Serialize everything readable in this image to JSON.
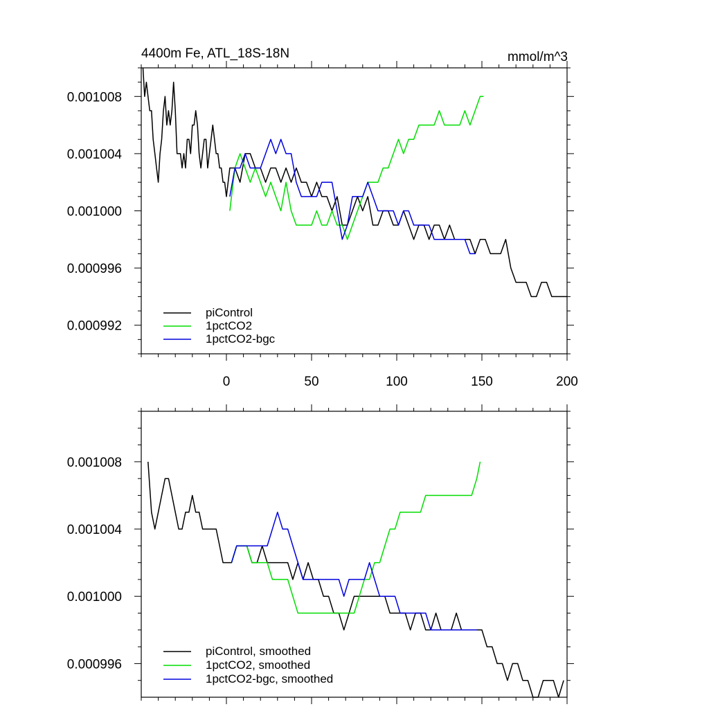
{
  "chart_data": [
    {
      "type": "line",
      "title": "4400m Fe, ATL_18S-18N",
      "units": "mmol/m^3",
      "xlim": [
        -50,
        200
      ],
      "ylim": [
        0.00099,
        0.00101
      ],
      "xticks": [
        0,
        50,
        100,
        150,
        200
      ],
      "xtick_labels": [
        "0",
        "50",
        "100",
        "150",
        "200"
      ],
      "yticks": [
        0.000992,
        0.000996,
        0.001,
        0.001004,
        0.001008
      ],
      "ytick_labels": [
        "0.000992",
        "0.000996",
        "0.001000",
        "0.001004",
        "0.001008"
      ],
      "legend_position": "bottom-left",
      "series": [
        {
          "name": "piControl",
          "color": "#000000",
          "x": [
            -49,
            -48,
            -47,
            -46,
            -45,
            -44,
            -43,
            -42,
            -41,
            -40,
            -39,
            -38,
            -37,
            -36,
            -35,
            -34,
            -33,
            -32,
            -31,
            -30,
            -29,
            -28,
            -27,
            -26,
            -25,
            -24,
            -23,
            -22,
            -21,
            -20,
            -19,
            -18,
            -17,
            -16,
            -15,
            -14,
            -13,
            -12,
            -11,
            -10,
            -9,
            -8,
            -7,
            -6,
            -5,
            -4,
            -3,
            -2,
            -1,
            0,
            2,
            5,
            8,
            11,
            14,
            17,
            20,
            23,
            26,
            29,
            32,
            35,
            38,
            41,
            44,
            47,
            50,
            53,
            56,
            59,
            62,
            65,
            68,
            71,
            74,
            77,
            80,
            83,
            86,
            89,
            92,
            95,
            98,
            101,
            104,
            107,
            110,
            113,
            116,
            119,
            122,
            125,
            128,
            131,
            134,
            137,
            140,
            143,
            146,
            149,
            152,
            155,
            158,
            161,
            164,
            167,
            170,
            173,
            176,
            179,
            182,
            185,
            188,
            191,
            194,
            197,
            200
          ],
          "values": [
            0.00101,
            0.001008,
            0.001009,
            0.001008,
            0.001007,
            0.001007,
            0.001005,
            0.001004,
            0.001003,
            0.001002,
            0.001004,
            0.001005,
            0.001007,
            0.001008,
            0.001006,
            0.001007,
            0.001006,
            0.001007,
            0.001009,
            0.001007,
            0.001004,
            0.001004,
            0.001004,
            0.001003,
            0.001004,
            0.001003,
            0.001005,
            0.001005,
            0.001004,
            0.001006,
            0.001006,
            0.001007,
            0.001006,
            0.001004,
            0.001003,
            0.001004,
            0.001005,
            0.001005,
            0.001003,
            0.001004,
            0.001005,
            0.001006,
            0.001005,
            0.001004,
            0.001004,
            0.001003,
            0.001003,
            0.001002,
            0.001002,
            0.001001,
            0.001003,
            0.001003,
            0.001002,
            0.001004,
            0.001004,
            0.001003,
            0.001003,
            0.001002,
            0.001003,
            0.001003,
            0.001002,
            0.001003,
            0.001002,
            0.001003,
            0.001002,
            0.001002,
            0.001001,
            0.001002,
            0.001001,
            0.001001,
            0.001,
            0.001001,
            0.000999,
            0.000999,
            0.001,
            0.001001,
            0.001,
            0.001001,
            0.000999,
            0.000999,
            0.001,
            0.001,
            0.000999,
            0.000999,
            0.001,
            0.000999,
            0.000998,
            0.000999,
            0.000999,
            0.000998,
            0.000999,
            0.000999,
            0.000998,
            0.000999,
            0.000998,
            0.000998,
            0.000998,
            0.000998,
            0.000997,
            0.000998,
            0.000998,
            0.000997,
            0.000997,
            0.000997,
            0.000998,
            0.000996,
            0.000995,
            0.000995,
            0.000995,
            0.000994,
            0.000994,
            0.000995,
            0.000995,
            0.000994,
            0.000994,
            0.000994,
            0.000994
          ]
        },
        {
          "name": "1pctCO2",
          "color": "#00dd00",
          "x": [
            2,
            5,
            8,
            11,
            14,
            17,
            20,
            23,
            26,
            29,
            32,
            35,
            38,
            41,
            44,
            47,
            50,
            53,
            56,
            59,
            62,
            65,
            68,
            71,
            74,
            77,
            80,
            83,
            86,
            89,
            92,
            95,
            98,
            101,
            104,
            107,
            110,
            113,
            116,
            119,
            122,
            125,
            128,
            131,
            134,
            137,
            140,
            143,
            146,
            149,
            151
          ],
          "values": [
            0.001,
            0.001003,
            0.001004,
            0.001003,
            0.001002,
            0.001003,
            0.001002,
            0.001001,
            0.001002,
            0.001001,
            0.001,
            0.001002,
            0.001,
            0.000999,
            0.000999,
            0.000999,
            0.000999,
            0.001,
            0.000999,
            0.000999,
            0.001,
            0.000999,
            0.000999,
            0.000998,
            0.000999,
            0.001,
            0.001001,
            0.001002,
            0.001002,
            0.001002,
            0.001003,
            0.001003,
            0.001004,
            0.001005,
            0.001004,
            0.001005,
            0.001005,
            0.001006,
            0.001006,
            0.001006,
            0.001006,
            0.001007,
            0.001006,
            0.001006,
            0.001006,
            0.001006,
            0.001007,
            0.001006,
            0.001007,
            0.001008,
            0.001008
          ]
        },
        {
          "name": "1pctCO2-bgc",
          "color": "#0000dd",
          "x": [
            2,
            5,
            8,
            11,
            14,
            17,
            20,
            23,
            26,
            29,
            32,
            35,
            38,
            41,
            44,
            47,
            50,
            53,
            56,
            59,
            62,
            65,
            68,
            71,
            74,
            77,
            80,
            83,
            86,
            89,
            92,
            95,
            98,
            101,
            104,
            107,
            110,
            113,
            116,
            119,
            122,
            125,
            128,
            131,
            134,
            137,
            140,
            143,
            146
          ],
          "values": [
            0.001001,
            0.001003,
            0.001003,
            0.001004,
            0.001003,
            0.001003,
            0.001003,
            0.001004,
            0.001005,
            0.001004,
            0.001005,
            0.001004,
            0.001004,
            0.001002,
            0.001001,
            0.001001,
            0.001001,
            0.001001,
            0.001002,
            0.001002,
            0.001002,
            0.001,
            0.000998,
            0.000999,
            0.001001,
            0.001001,
            0.001001,
            0.001002,
            0.001001,
            0.001,
            0.001,
            0.001,
            0.001,
            0.000999,
            0.001,
            0.001,
            0.000999,
            0.000999,
            0.000999,
            0.000999,
            0.000998,
            0.000998,
            0.000998,
            0.000998,
            0.000998,
            0.000998,
            0.000998,
            0.000997,
            0.000997
          ]
        }
      ]
    },
    {
      "type": "line",
      "title": "",
      "xlim": [
        -50,
        200
      ],
      "ylim": [
        0.000994,
        0.001011
      ],
      "xticks": [
        0,
        50,
        100,
        150,
        200
      ],
      "yticks": [
        0.000996,
        0.001,
        0.001004,
        0.001008
      ],
      "ytick_labels": [
        "0.000996",
        "0.001000",
        "0.001004",
        "0.001008"
      ],
      "legend_position": "bottom-left",
      "series": [
        {
          "name": "piControl, smoothed",
          "color": "#000000",
          "x": [
            -46,
            -44,
            -42,
            -40,
            -38,
            -36,
            -34,
            -32,
            -30,
            -28,
            -26,
            -24,
            -22,
            -20,
            -18,
            -16,
            -14,
            -12,
            -10,
            -8,
            -6,
            -4,
            -2,
            0,
            3,
            6,
            9,
            12,
            15,
            18,
            21,
            24,
            27,
            30,
            33,
            36,
            39,
            42,
            45,
            48,
            51,
            54,
            57,
            60,
            63,
            66,
            69,
            72,
            75,
            78,
            81,
            84,
            87,
            90,
            93,
            96,
            99,
            102,
            105,
            108,
            111,
            114,
            117,
            120,
            123,
            126,
            129,
            132,
            135,
            138,
            141,
            144,
            147,
            150,
            153,
            156,
            159,
            162,
            165,
            168,
            171,
            174,
            177,
            180,
            183,
            186,
            189,
            192,
            195,
            198
          ],
          "values": [
            0.001008,
            0.001005,
            0.001004,
            0.001005,
            0.001006,
            0.001007,
            0.001007,
            0.001006,
            0.001005,
            0.001004,
            0.001004,
            0.001005,
            0.001005,
            0.001006,
            0.001005,
            0.001005,
            0.001004,
            0.001004,
            0.001004,
            0.001004,
            0.001004,
            0.001003,
            0.001002,
            0.001002,
            0.001002,
            0.001003,
            0.001003,
            0.001003,
            0.001002,
            0.001002,
            0.001003,
            0.001002,
            0.001002,
            0.001002,
            0.001002,
            0.001002,
            0.001001,
            0.001002,
            0.001001,
            0.001002,
            0.001001,
            0.001001,
            0.001,
            0.001,
            0.000999,
            0.000999,
            0.000998,
            0.000999,
            0.001,
            0.001,
            0.001,
            0.001,
            0.001,
            0.001,
            0.001,
            0.000999,
            0.000999,
            0.000999,
            0.000999,
            0.000998,
            0.000999,
            0.000999,
            0.000998,
            0.000998,
            0.000999,
            0.000998,
            0.000998,
            0.000998,
            0.000999,
            0.000998,
            0.000998,
            0.000998,
            0.000998,
            0.000998,
            0.000997,
            0.000997,
            0.000996,
            0.000996,
            0.000995,
            0.000996,
            0.000996,
            0.000995,
            0.000995,
            0.000994,
            0.000994,
            0.000995,
            0.000995,
            0.000995,
            0.000994,
            0.000995
          ]
        },
        {
          "name": "1pctCO2, smoothed",
          "color": "#00dd00",
          "x": [
            3,
            6,
            9,
            12,
            15,
            18,
            21,
            24,
            27,
            30,
            33,
            36,
            39,
            42,
            45,
            48,
            51,
            54,
            57,
            60,
            63,
            66,
            69,
            72,
            75,
            78,
            81,
            84,
            87,
            90,
            93,
            96,
            99,
            102,
            105,
            108,
            111,
            114,
            117,
            120,
            123,
            126,
            129,
            132,
            135,
            138,
            141,
            144,
            147,
            149
          ],
          "values": [
            0.001002,
            0.001003,
            0.001003,
            0.001003,
            0.001002,
            0.001002,
            0.001002,
            0.001002,
            0.001001,
            0.001001,
            0.001001,
            0.001001,
            0.001,
            0.000999,
            0.000999,
            0.000999,
            0.000999,
            0.000999,
            0.000999,
            0.000999,
            0.000999,
            0.000999,
            0.000999,
            0.000999,
            0.000999,
            0.001,
            0.001001,
            0.001001,
            0.001002,
            0.001002,
            0.001003,
            0.001004,
            0.001004,
            0.001005,
            0.001005,
            0.001005,
            0.001005,
            0.001005,
            0.001006,
            0.001006,
            0.001006,
            0.001006,
            0.001006,
            0.001006,
            0.001006,
            0.001006,
            0.001006,
            0.001006,
            0.001007,
            0.001008
          ]
        },
        {
          "name": "1pctCO2-bgc, smoothed",
          "color": "#0000dd",
          "x": [
            3,
            6,
            9,
            12,
            15,
            18,
            21,
            24,
            27,
            30,
            33,
            36,
            39,
            42,
            45,
            48,
            51,
            54,
            57,
            60,
            63,
            66,
            69,
            72,
            75,
            78,
            81,
            84,
            87,
            90,
            93,
            96,
            99,
            102,
            105,
            108,
            111,
            114,
            117,
            120,
            123,
            126,
            129,
            132,
            135,
            138,
            141,
            144,
            147
          ],
          "values": [
            0.001002,
            0.001003,
            0.001003,
            0.001003,
            0.001003,
            0.001003,
            0.001003,
            0.001003,
            0.001004,
            0.001005,
            0.001004,
            0.001004,
            0.001003,
            0.001002,
            0.001001,
            0.001001,
            0.001001,
            0.001001,
            0.001001,
            0.001001,
            0.001001,
            0.001001,
            0.001,
            0.001001,
            0.001001,
            0.001001,
            0.001001,
            0.001002,
            0.001001,
            0.001,
            0.001,
            0.001,
            0.001,
            0.000999,
            0.000999,
            0.000999,
            0.000999,
            0.000999,
            0.000999,
            0.000998,
            0.000998,
            0.000998,
            0.000998,
            0.000998,
            0.000998,
            0.000998,
            0.000998,
            0.000998,
            0.000998
          ]
        }
      ]
    }
  ]
}
